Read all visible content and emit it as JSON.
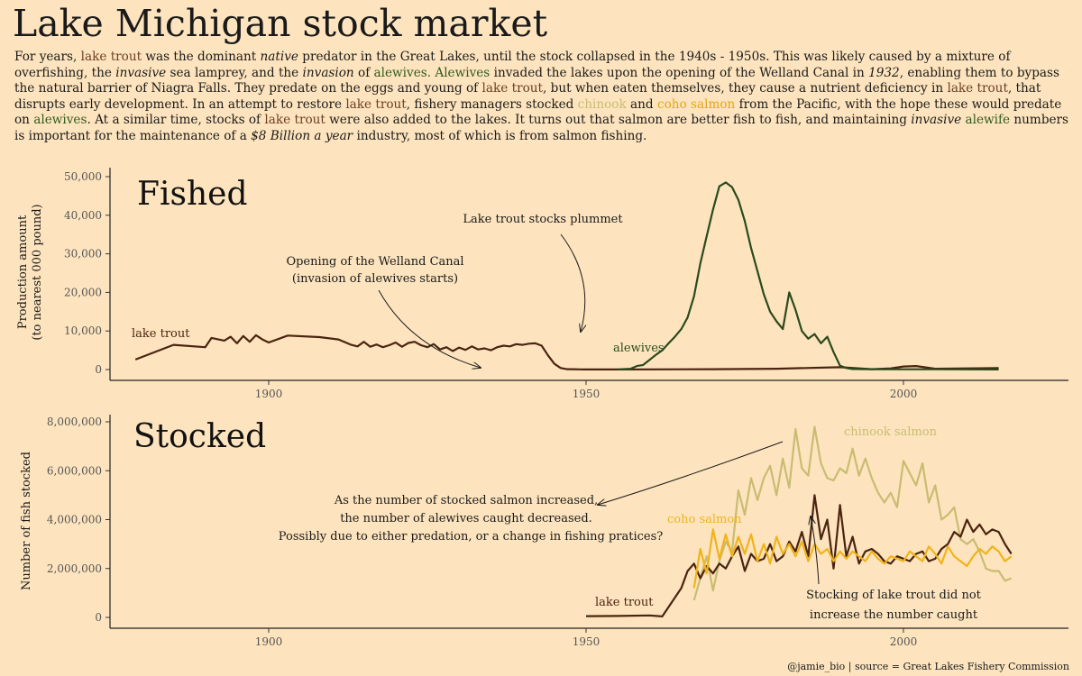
{
  "title": "Lake Michigan stock market",
  "intro": {
    "p1": "For years, ",
    "lake_trout": "lake trout",
    "p2": " was the dominant ",
    "native": "native",
    "p3": " predator in the Great Lakes, until the stock collapsed in the 1940s - 1950s. This was likely caused by a mixture of overfishing, the ",
    "invasive": "invasive",
    "p4": " sea lamprey, and the ",
    "invasion": "invasion",
    "p5": " of ",
    "alewives": "alewives.",
    "p6": " ",
    "alewives2": "Alewives",
    "p7": " invaded the lakes upon the opening of the Welland Canal in ",
    "y1932": "1932",
    "p8": ", enabling them to bypass the natural barrier of Niagra Falls. They predate on the eggs and young of ",
    "p9": ", but when eaten themselves, they cause a nutrient deficiency in ",
    "p10": ", that disrupts early development. In an attempt to restore ",
    "p11": ", fishery managers stocked ",
    "chinook": "chinook",
    "p12": " and ",
    "coho": "coho salmon",
    "p13": " from the Pacific, with the hope these would predate on ",
    "alewives3": "alewives",
    "p14": ". At a similar time, stocks of ",
    "p15": " were also added to the lakes. It turns out that salmon are better fish to fish, and maintaining ",
    "invasive2": "invasive",
    "alewife": "alewife",
    "p16": " numbers is important for the maintenance of a ",
    "billion": "$8 Billion a year",
    "p17": " industry, most of which is from salmon fishing."
  },
  "colors": {
    "lake_trout": "#4a2410",
    "alewives": "#2b4a1c",
    "chinook": "#c9bc72",
    "coho": "#f0b31a",
    "lake_trout_text": "#6b3e22",
    "alewives_text": "#2f5a1d"
  },
  "credit": "@jamie_bio | source = Great Lakes Fishery Commission",
  "chart_data": [
    {
      "type": "line",
      "title": "Fished",
      "ylabel_line1": "Production amount",
      "ylabel_line2": "(to nearest 000 pound)",
      "xlim": [
        1875,
        2026
      ],
      "ylim": [
        0,
        51000
      ],
      "xticks": [
        1900,
        1950,
        2000
      ],
      "yticks": [
        0,
        10000,
        20000,
        30000,
        40000,
        50000
      ],
      "ytick_labels": [
        "0",
        "10,000",
        "20,000",
        "30,000",
        "40,000",
        "50,000"
      ],
      "series": [
        {
          "name": "lake trout",
          "x": [
            1879,
            1885,
            1890,
            1891,
            1893,
            1894,
            1895,
            1896,
            1897,
            1898,
            1899,
            1900,
            1903,
            1908,
            1911,
            1913,
            1914,
            1915,
            1916,
            1917,
            1918,
            1919,
            1920,
            1921,
            1922,
            1923,
            1924,
            1925,
            1926,
            1927,
            1928,
            1929,
            1930,
            1931,
            1932,
            1933,
            1934,
            1935,
            1936,
            1937,
            1938,
            1939,
            1940,
            1941,
            1942,
            1943,
            1944,
            1945,
            1946,
            1947,
            1948,
            1949,
            1950,
            1955,
            1960,
            1970,
            1980,
            1990,
            1995,
            1998,
            2000,
            2002,
            2005,
            2010,
            2015
          ],
          "y": [
            2600,
            6400,
            5800,
            8200,
            7500,
            8500,
            6800,
            8700,
            7200,
            8900,
            7800,
            7000,
            8800,
            8400,
            7800,
            6400,
            6000,
            7200,
            5900,
            6500,
            5800,
            6300,
            7000,
            5900,
            6900,
            7200,
            6300,
            5800,
            6600,
            5200,
            5800,
            4800,
            5700,
            5100,
            6000,
            5200,
            5500,
            5000,
            5800,
            6200,
            6000,
            6600,
            6400,
            6700,
            6800,
            6200,
            3700,
            1500,
            400,
            100,
            100,
            50,
            30,
            20,
            50,
            100,
            200,
            600,
            100,
            300,
            800,
            900,
            200,
            300,
            400
          ]
        },
        {
          "name": "alewives",
          "x": [
            1955,
            1957,
            1958,
            1959,
            1960,
            1961,
            1962,
            1963,
            1964,
            1965,
            1966,
            1967,
            1968,
            1969,
            1970,
            1971,
            1972,
            1973,
            1974,
            1975,
            1976,
            1977,
            1978,
            1979,
            1980,
            1981,
            1982,
            1983,
            1984,
            1985,
            1986,
            1987,
            1988,
            1989,
            1990,
            1991,
            1992,
            1995,
            2000,
            2005,
            2010,
            2015
          ],
          "y": [
            50,
            200,
            900,
            1200,
            2500,
            3800,
            5000,
            6800,
            8500,
            10500,
            13500,
            19000,
            27500,
            34500,
            41500,
            47500,
            48500,
            47300,
            44000,
            38500,
            31500,
            25500,
            19500,
            15000,
            12500,
            10500,
            20000,
            15500,
            10000,
            8000,
            9200,
            6800,
            8500,
            4500,
            1000,
            400,
            150,
            100,
            80,
            60,
            40,
            30
          ]
        }
      ]
    },
    {
      "type": "line",
      "title": "Stocked",
      "ylabel": "Number of fish stocked",
      "xlim": [
        1875,
        2026
      ],
      "ylim": [
        0,
        8200000
      ],
      "xticks": [
        1900,
        1950,
        2000
      ],
      "yticks": [
        0,
        2000000,
        4000000,
        6000000,
        8000000
      ],
      "ytick_labels": [
        "0",
        "2,000,000",
        "4,000,000",
        "6,000,000",
        "8,000,000"
      ],
      "series": [
        {
          "name": "lake trout",
          "x": [
            1950,
            1955,
            1960,
            1962,
            1965,
            1966,
            1967,
            1968,
            1969,
            1970,
            1971,
            1972,
            1973,
            1974,
            1975,
            1976,
            1977,
            1978,
            1979,
            1980,
            1981,
            1982,
            1983,
            1984,
            1985,
            1986,
            1987,
            1988,
            1989,
            1990,
            1991,
            1992,
            1993,
            1994,
            1995,
            1996,
            1997,
            1998,
            1999,
            2000,
            2001,
            2002,
            2003,
            2004,
            2005,
            2006,
            2007,
            2008,
            2009,
            2010,
            2011,
            2012,
            2013,
            2014,
            2015,
            2016,
            2017
          ],
          "y": [
            50000,
            60000,
            80000,
            40000,
            1200000,
            1900000,
            2200000,
            1600000,
            2100000,
            1800000,
            2200000,
            2000000,
            2500000,
            2900000,
            1900000,
            2600000,
            2300000,
            2400000,
            3000000,
            2300000,
            2500000,
            3100000,
            2700000,
            3500000,
            2500000,
            5000000,
            3200000,
            4000000,
            2000000,
            4600000,
            2500000,
            3300000,
            2200000,
            2700000,
            2800000,
            2600000,
            2300000,
            2200000,
            2500000,
            2400000,
            2300000,
            2600000,
            2700000,
            2300000,
            2400000,
            2800000,
            3000000,
            3500000,
            3300000,
            4000000,
            3500000,
            3800000,
            3400000,
            3600000,
            3500000,
            3000000,
            2600000
          ]
        },
        {
          "name": "chinook salmon",
          "x": [
            1967,
            1968,
            1969,
            1970,
            1971,
            1972,
            1973,
            1974,
            1975,
            1976,
            1977,
            1978,
            1979,
            1980,
            1981,
            1982,
            1983,
            1984,
            1985,
            1986,
            1987,
            1988,
            1989,
            1990,
            1991,
            1992,
            1993,
            1994,
            1995,
            1996,
            1997,
            1998,
            1999,
            2000,
            2001,
            2002,
            2003,
            2004,
            2005,
            2006,
            2007,
            2008,
            2009,
            2010,
            2011,
            2012,
            2013,
            2014,
            2015,
            2016,
            2017
          ],
          "y": [
            700000,
            1600000,
            2500000,
            1100000,
            2300000,
            3100000,
            2700000,
            5200000,
            4200000,
            5700000,
            4800000,
            5700000,
            6200000,
            5000000,
            6500000,
            5300000,
            7700000,
            6100000,
            5800000,
            7800000,
            6300000,
            5700000,
            5600000,
            6100000,
            5900000,
            6900000,
            5800000,
            6500000,
            5700000,
            5100000,
            4700000,
            5100000,
            4500000,
            6400000,
            5900000,
            5400000,
            6300000,
            4700000,
            5400000,
            4000000,
            4200000,
            4500000,
            3200000,
            3000000,
            3200000,
            2700000,
            2000000,
            1900000,
            1900000,
            1500000,
            1600000
          ]
        },
        {
          "name": "coho salmon",
          "x": [
            1967,
            1968,
            1969,
            1970,
            1971,
            1972,
            1973,
            1974,
            1975,
            1976,
            1977,
            1978,
            1979,
            1980,
            1981,
            1982,
            1983,
            1984,
            1985,
            1986,
            1987,
            1988,
            1989,
            1990,
            1991,
            1992,
            1993,
            1994,
            1995,
            1996,
            1997,
            1998,
            1999,
            2000,
            2001,
            2002,
            2003,
            2004,
            2005,
            2006,
            2007,
            2008,
            2009,
            2010,
            2011,
            2012,
            2013,
            2014,
            2015,
            2016,
            2017
          ],
          "y": [
            1200000,
            2800000,
            1800000,
            3600000,
            2400000,
            3400000,
            2500000,
            3300000,
            2600000,
            3400000,
            2300000,
            3000000,
            2200000,
            3300000,
            2600000,
            3000000,
            2500000,
            3100000,
            2300000,
            3000000,
            2600000,
            2800000,
            2300000,
            2700000,
            2400000,
            2700000,
            2500000,
            2300000,
            2700000,
            2400000,
            2200000,
            2500000,
            2400000,
            2300000,
            2700000,
            2500000,
            2300000,
            2900000,
            2600000,
            2200000,
            2900000,
            2500000,
            2300000,
            2100000,
            2500000,
            2800000,
            2600000,
            2900000,
            2700000,
            2300000,
            2500000
          ]
        }
      ]
    }
  ],
  "annotations": {
    "fished": {
      "lake_trout_label": "lake trout",
      "alewives_label": "alewives",
      "welland_line1": "Opening of the Welland Canal",
      "welland_line2": "(invasion of alewives starts)",
      "plummet": "Lake trout stocks plummet"
    },
    "stocked": {
      "chinook_label": "chinook salmon",
      "coho_label": "coho salmon",
      "lake_trout_label": "lake trout",
      "salmon_line1": "As the number of stocked salmon increased,",
      "salmon_line2": "the number of alewives caught decreased.",
      "salmon_line3": "Possibly due to either predation, or a change in fishing pratices?",
      "trout_line1": "Stocking of lake trout did not",
      "trout_line2": "increase the number caught"
    }
  }
}
